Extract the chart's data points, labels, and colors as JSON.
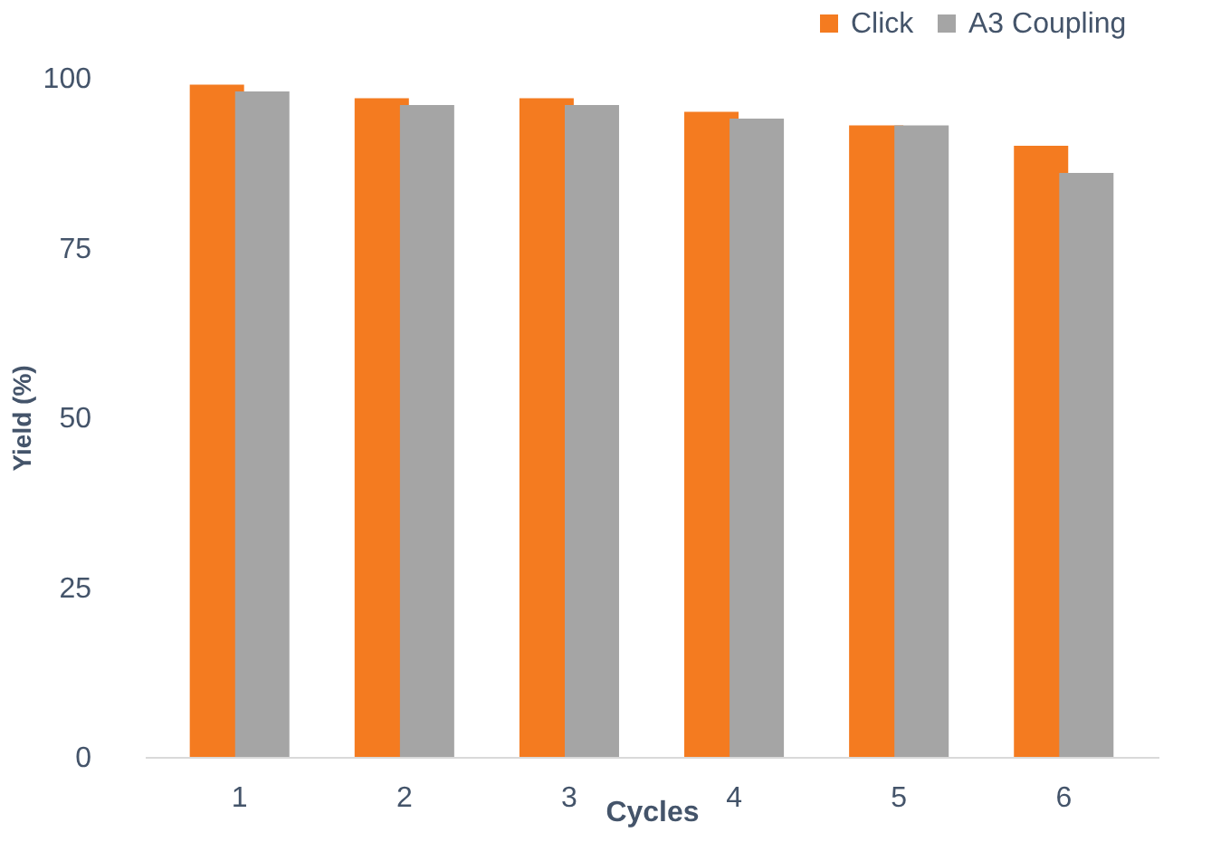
{
  "chart_data": {
    "type": "bar",
    "xlabel": "Cycles",
    "ylabel": "Yield (%)",
    "categories": [
      "1",
      "2",
      "3",
      "4",
      "5",
      "6"
    ],
    "series": [
      {
        "name": "Click",
        "color": "#f47b20",
        "values": [
          99,
          97,
          97,
          95,
          93,
          90
        ]
      },
      {
        "name": "A3 Coupling",
        "color": "#a5a5a5",
        "values": [
          98,
          96,
          96,
          94,
          93,
          86
        ]
      }
    ],
    "ylim": [
      0,
      100
    ],
    "yticks": [
      0,
      25,
      50,
      75,
      100
    ],
    "grid": false,
    "legend": "top right"
  }
}
